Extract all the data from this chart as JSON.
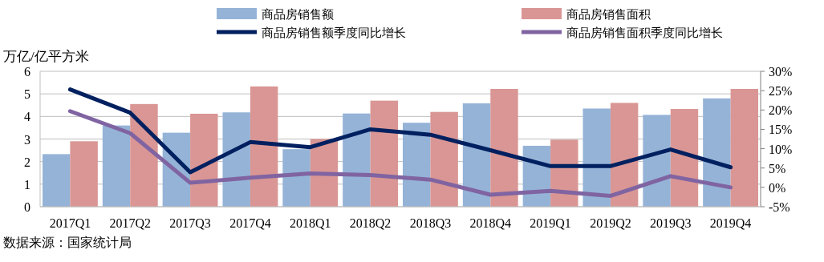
{
  "chart_data": {
    "type": "bar",
    "ylabel": "万亿/亿平方米",
    "categories": [
      "2017Q1",
      "2017Q2",
      "2017Q3",
      "2017Q4",
      "2018Q1",
      "2018Q2",
      "2018Q3",
      "2018Q4",
      "2019Q1",
      "2019Q2",
      "2019Q3",
      "2019Q4"
    ],
    "series": [
      {
        "name": "商品房销售额",
        "color": "#95b3d7",
        "values": [
          2.33,
          3.6,
          3.28,
          4.18,
          2.55,
          4.13,
          3.72,
          4.58,
          2.7,
          4.35,
          4.07,
          4.8
        ]
      },
      {
        "name": "商品房销售面积",
        "color": "#d99694",
        "values": [
          2.9,
          4.55,
          4.12,
          5.33,
          3.0,
          4.7,
          4.2,
          5.22,
          2.97,
          4.6,
          4.33,
          5.22
        ]
      },
      {
        "name": "商品房销售额季度同比增长",
        "type": "line",
        "axis": "y2",
        "color": "#002060",
        "values": [
          25.3,
          19.3,
          3.9,
          11.7,
          10.4,
          15,
          13.6,
          9.6,
          5.5,
          5.5,
          9.8,
          5.2
        ]
      },
      {
        "name": "商品房销售面积季度同比增长",
        "type": "line",
        "axis": "y2",
        "color": "#8064a2",
        "values": [
          19.7,
          14,
          1.2,
          2.5,
          3.6,
          3.2,
          2,
          -1.9,
          -0.9,
          -2.2,
          2.9,
          0
        ]
      }
    ],
    "ylim": [
      0,
      6
    ],
    "yticks": [
      0,
      1,
      2,
      3,
      4,
      5,
      6
    ],
    "y2lim": [
      -5,
      30
    ],
    "y2ticks": [
      {
        "value": -5,
        "label": "-5%"
      },
      {
        "value": 0,
        "label": "0%"
      },
      {
        "value": 5,
        "label": "5%"
      },
      {
        "value": 10,
        "label": "10%"
      },
      {
        "value": 15,
        "label": "15%"
      },
      {
        "value": 20,
        "label": "20%"
      },
      {
        "value": 25,
        "label": "25%"
      },
      {
        "value": 30,
        "label": "30%"
      }
    ],
    "grid": "y",
    "legend": "top",
    "marker": "none",
    "line_style": "solid",
    "annotations": [
      "数据来源：国家统计局"
    ]
  }
}
